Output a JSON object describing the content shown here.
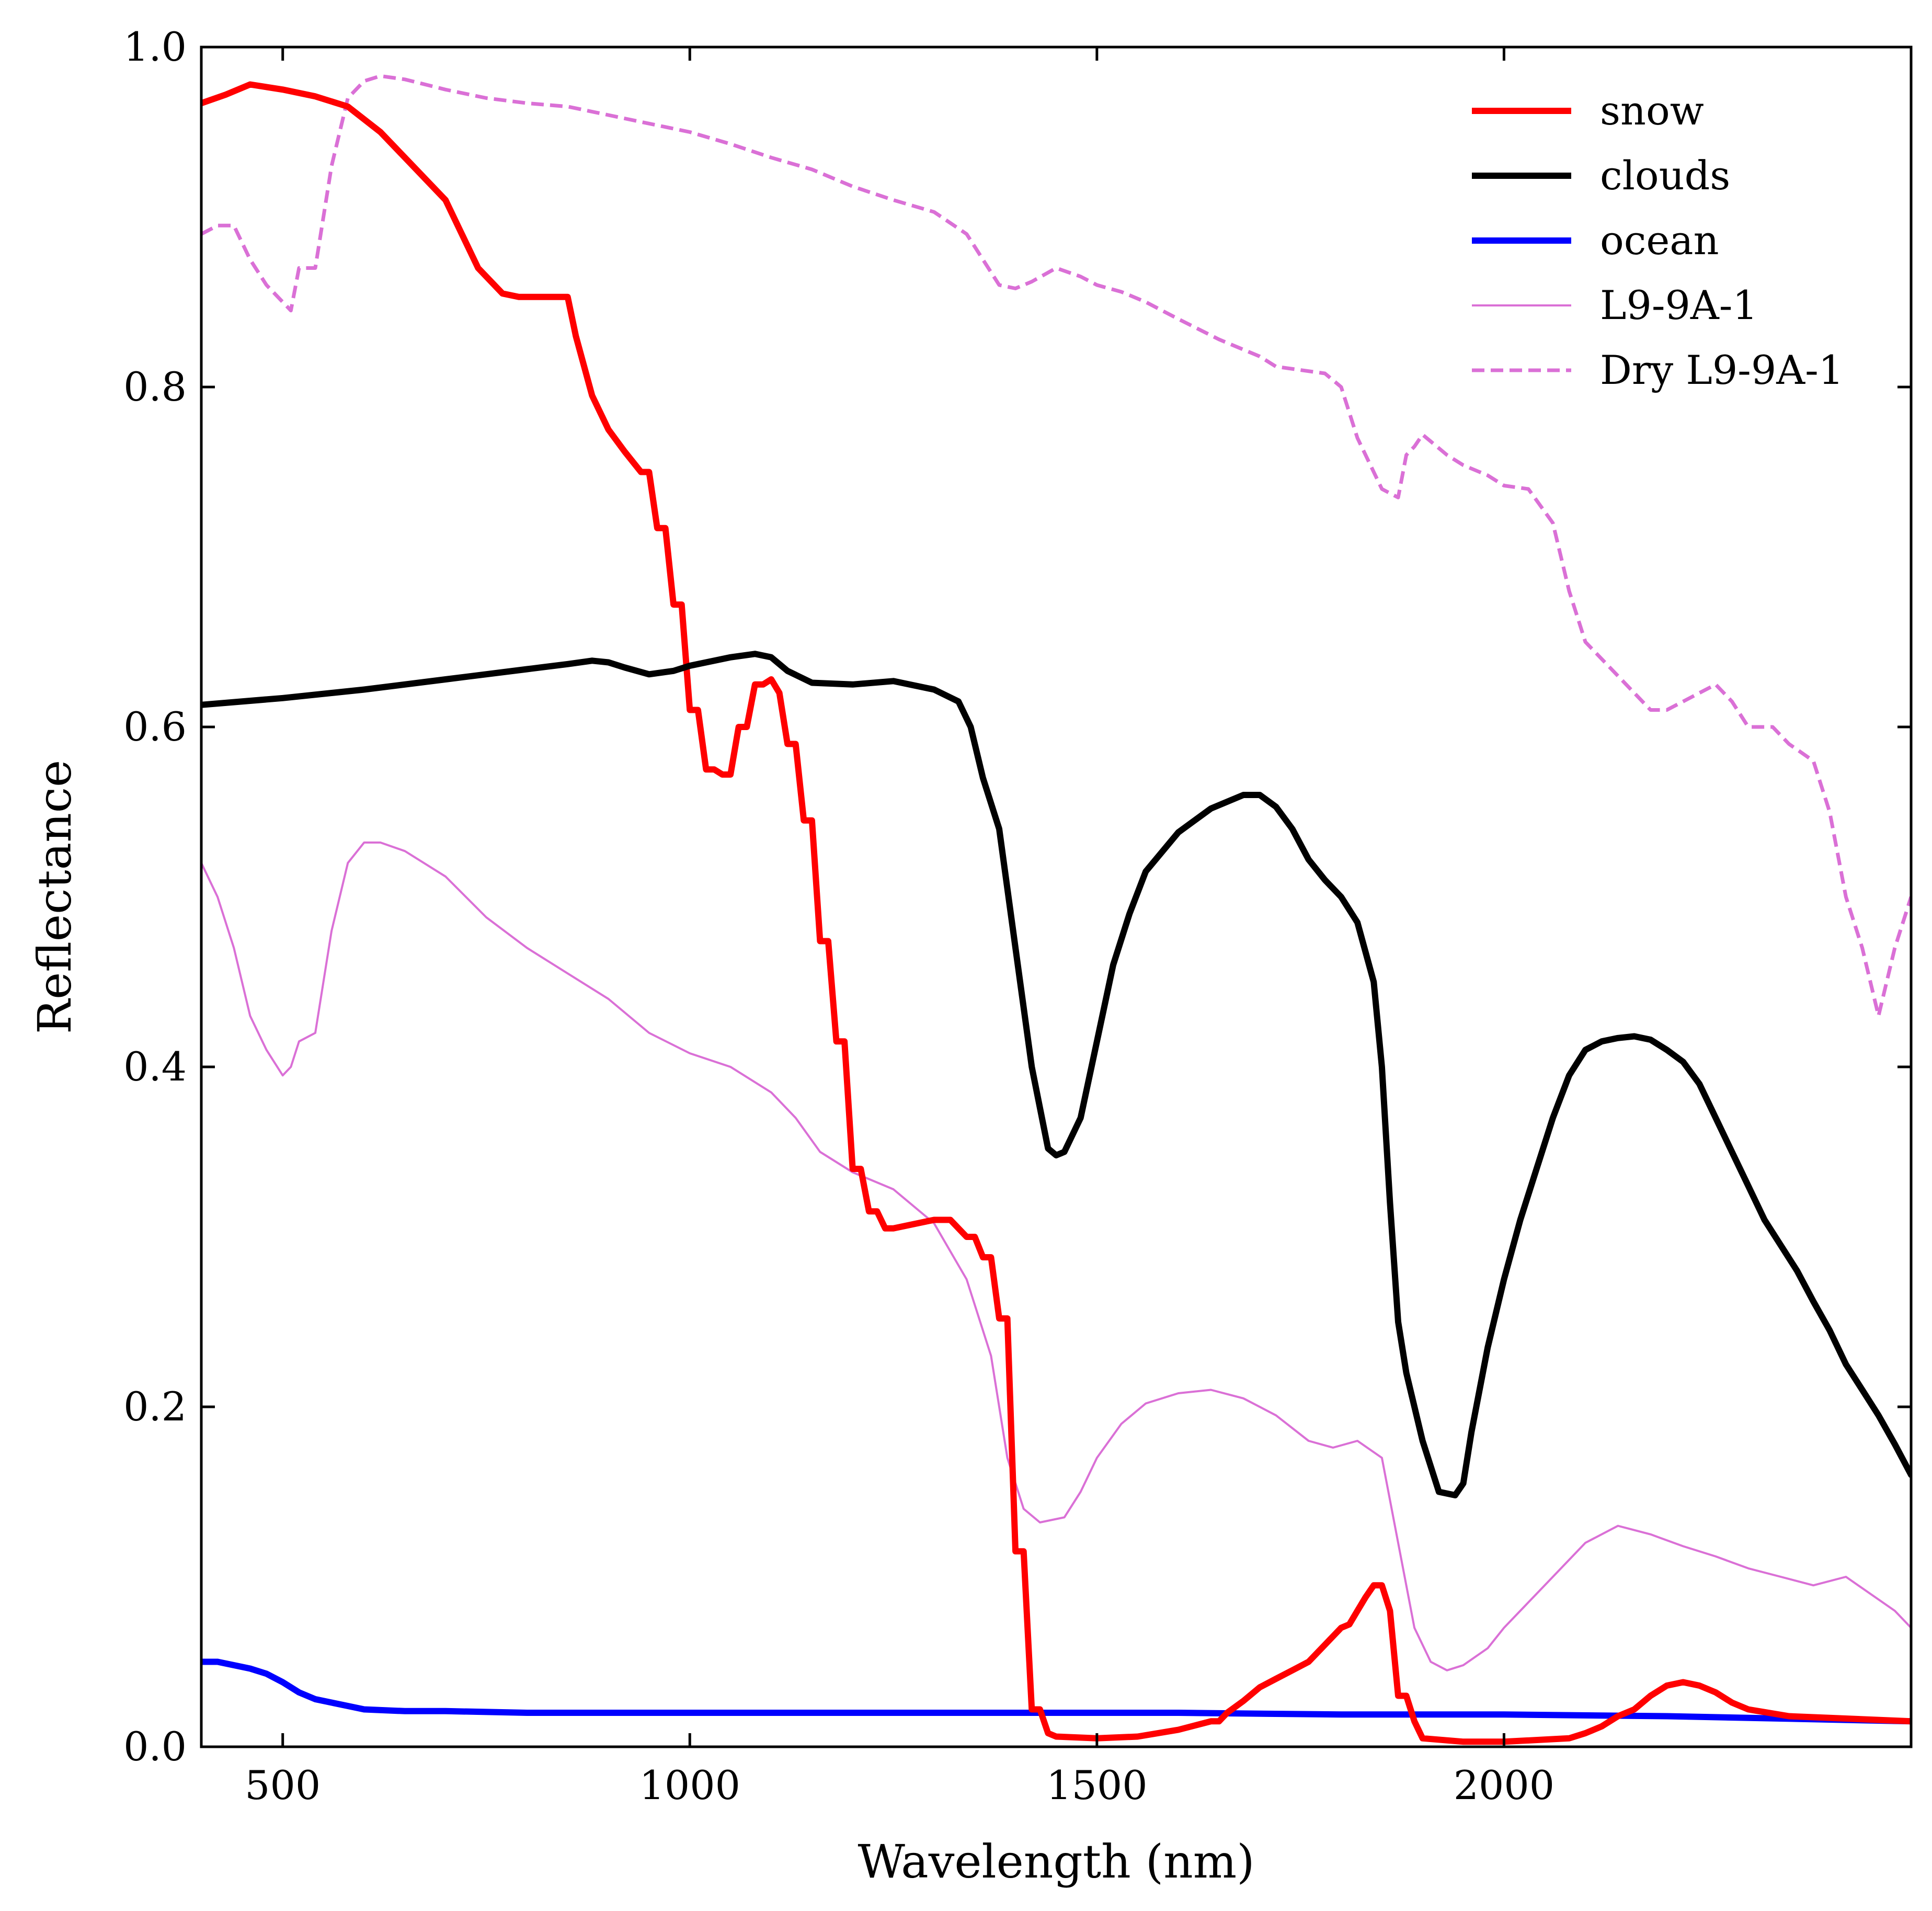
{
  "chart_data": {
    "type": "line",
    "title": "",
    "xlabel": "Wavelength (nm)",
    "ylabel": "Reflectance",
    "xlim": [
      400,
      2500
    ],
    "ylim": [
      0.0,
      1.0
    ],
    "xticks": [
      500,
      1000,
      1500,
      2000
    ],
    "xtick_labels": [
      "500",
      "1000",
      "1500",
      "2000"
    ],
    "yticks": [
      0.0,
      0.2,
      0.4,
      0.6,
      0.8,
      1.0
    ],
    "ytick_labels": [
      "0.0",
      "0.2",
      "0.4",
      "0.6",
      "0.8",
      "1.0"
    ],
    "grid": false,
    "legend_position": "top-right",
    "series": [
      {
        "name": "snow",
        "color": "#ff0000",
        "style": "solid",
        "weight": "thick",
        "x": [
          400,
          430,
          460,
          500,
          540,
          580,
          620,
          660,
          700,
          740,
          770,
          790,
          810,
          850,
          860,
          880,
          900,
          920,
          940,
          950,
          960,
          970,
          980,
          990,
          1000,
          1010,
          1020,
          1030,
          1040,
          1050,
          1060,
          1070,
          1080,
          1090,
          1100,
          1110,
          1120,
          1130,
          1140,
          1150,
          1160,
          1170,
          1180,
          1190,
          1200,
          1210,
          1220,
          1230,
          1240,
          1250,
          1300,
          1320,
          1340,
          1350,
          1360,
          1370,
          1380,
          1390,
          1400,
          1410,
          1420,
          1430,
          1440,
          1450,
          1500,
          1550,
          1600,
          1640,
          1650,
          1660,
          1680,
          1700,
          1720,
          1740,
          1760,
          1780,
          1800,
          1810,
          1820,
          1830,
          1840,
          1850,
          1860,
          1870,
          1880,
          1890,
          1900,
          1950,
          2000,
          2080,
          2100,
          2120,
          2140,
          2160,
          2180,
          2200,
          2220,
          2240,
          2260,
          2280,
          2300,
          2350,
          2400,
          2450,
          2500
        ],
        "y": [
          0.967,
          0.972,
          0.978,
          0.975,
          0.971,
          0.965,
          0.95,
          0.93,
          0.91,
          0.87,
          0.855,
          0.853,
          0.853,
          0.853,
          0.83,
          0.795,
          0.775,
          0.762,
          0.75,
          0.75,
          0.717,
          0.717,
          0.672,
          0.672,
          0.61,
          0.61,
          0.575,
          0.575,
          0.572,
          0.572,
          0.6,
          0.6,
          0.625,
          0.625,
          0.628,
          0.62,
          0.59,
          0.59,
          0.545,
          0.545,
          0.474,
          0.474,
          0.415,
          0.415,
          0.34,
          0.34,
          0.315,
          0.315,
          0.305,
          0.305,
          0.31,
          0.31,
          0.3,
          0.3,
          0.288,
          0.288,
          0.252,
          0.252,
          0.115,
          0.115,
          0.022,
          0.022,
          0.008,
          0.006,
          0.005,
          0.006,
          0.01,
          0.015,
          0.015,
          0.02,
          0.027,
          0.035,
          0.04,
          0.045,
          0.05,
          0.06,
          0.07,
          0.072,
          0.08,
          0.088,
          0.095,
          0.095,
          0.08,
          0.03,
          0.03,
          0.015,
          0.005,
          0.003,
          0.003,
          0.005,
          0.008,
          0.012,
          0.018,
          0.022,
          0.03,
          0.036,
          0.038,
          0.036,
          0.032,
          0.026,
          0.022,
          0.018,
          0.017,
          0.016,
          0.015
        ]
      },
      {
        "name": "clouds",
        "color": "#000000",
        "style": "solid",
        "weight": "thick",
        "x": [
          400,
          500,
          600,
          700,
          800,
          850,
          880,
          900,
          920,
          950,
          980,
          1000,
          1050,
          1080,
          1100,
          1120,
          1150,
          1200,
          1250,
          1300,
          1330,
          1345,
          1360,
          1380,
          1400,
          1420,
          1440,
          1450,
          1460,
          1480,
          1500,
          1520,
          1540,
          1560,
          1600,
          1640,
          1680,
          1700,
          1720,
          1740,
          1760,
          1780,
          1800,
          1820,
          1840,
          1850,
          1860,
          1870,
          1880,
          1900,
          1920,
          1940,
          1950,
          1960,
          1980,
          2000,
          2020,
          2040,
          2060,
          2080,
          2100,
          2120,
          2140,
          2160,
          2180,
          2200,
          2220,
          2240,
          2260,
          2280,
          2300,
          2320,
          2340,
          2360,
          2380,
          2400,
          2420,
          2440,
          2460,
          2480,
          2500
        ],
        "y": [
          0.613,
          0.617,
          0.622,
          0.628,
          0.634,
          0.637,
          0.639,
          0.638,
          0.635,
          0.631,
          0.633,
          0.636,
          0.641,
          0.643,
          0.641,
          0.633,
          0.626,
          0.625,
          0.627,
          0.622,
          0.615,
          0.6,
          0.57,
          0.54,
          0.47,
          0.4,
          0.352,
          0.348,
          0.35,
          0.37,
          0.415,
          0.46,
          0.49,
          0.515,
          0.538,
          0.552,
          0.56,
          0.56,
          0.553,
          0.54,
          0.522,
          0.51,
          0.5,
          0.485,
          0.45,
          0.4,
          0.32,
          0.25,
          0.22,
          0.18,
          0.15,
          0.148,
          0.155,
          0.185,
          0.235,
          0.275,
          0.31,
          0.34,
          0.37,
          0.395,
          0.41,
          0.415,
          0.417,
          0.418,
          0.416,
          0.41,
          0.403,
          0.39,
          0.37,
          0.35,
          0.33,
          0.31,
          0.295,
          0.28,
          0.262,
          0.245,
          0.225,
          0.21,
          0.195,
          0.178,
          0.16
        ]
      },
      {
        "name": "ocean",
        "color": "#0000ff",
        "style": "solid",
        "weight": "thick",
        "x": [
          400,
          420,
          440,
          460,
          480,
          500,
          520,
          540,
          560,
          580,
          600,
          650,
          700,
          800,
          1000,
          1200,
          1400,
          1600,
          1800,
          2000,
          2200,
          2400,
          2500
        ],
        "y": [
          0.05,
          0.05,
          0.048,
          0.046,
          0.043,
          0.038,
          0.032,
          0.028,
          0.026,
          0.024,
          0.022,
          0.021,
          0.021,
          0.02,
          0.02,
          0.02,
          0.02,
          0.02,
          0.019,
          0.019,
          0.018,
          0.016,
          0.015
        ]
      },
      {
        "name": "L9-9A-1",
        "color": "#da70d6",
        "style": "solid",
        "weight": "thin",
        "x": [
          400,
          420,
          440,
          460,
          480,
          500,
          510,
          520,
          540,
          560,
          580,
          600,
          620,
          650,
          700,
          750,
          800,
          850,
          900,
          950,
          1000,
          1050,
          1100,
          1130,
          1160,
          1200,
          1250,
          1300,
          1340,
          1370,
          1390,
          1410,
          1430,
          1460,
          1480,
          1500,
          1530,
          1560,
          1600,
          1640,
          1680,
          1720,
          1760,
          1790,
          1820,
          1850,
          1870,
          1890,
          1910,
          1930,
          1950,
          1980,
          2000,
          2030,
          2060,
          2100,
          2140,
          2180,
          2220,
          2260,
          2300,
          2340,
          2380,
          2420,
          2450,
          2480,
          2500
        ],
        "y": [
          0.52,
          0.5,
          0.47,
          0.43,
          0.41,
          0.395,
          0.4,
          0.415,
          0.42,
          0.48,
          0.52,
          0.532,
          0.532,
          0.527,
          0.512,
          0.488,
          0.47,
          0.455,
          0.44,
          0.42,
          0.408,
          0.4,
          0.385,
          0.37,
          0.35,
          0.338,
          0.328,
          0.308,
          0.275,
          0.23,
          0.17,
          0.14,
          0.132,
          0.135,
          0.15,
          0.17,
          0.19,
          0.202,
          0.208,
          0.21,
          0.205,
          0.195,
          0.18,
          0.176,
          0.18,
          0.17,
          0.12,
          0.07,
          0.05,
          0.045,
          0.048,
          0.058,
          0.07,
          0.085,
          0.1,
          0.12,
          0.13,
          0.125,
          0.118,
          0.112,
          0.105,
          0.1,
          0.095,
          0.1,
          0.09,
          0.08,
          0.07
        ]
      },
      {
        "name": "Dry L9-9A-1",
        "color": "#da70d6",
        "style": "dashed",
        "weight": "medium",
        "x": [
          400,
          420,
          440,
          460,
          480,
          500,
          510,
          520,
          540,
          560,
          580,
          600,
          620,
          650,
          700,
          750,
          800,
          850,
          900,
          950,
          1000,
          1050,
          1100,
          1150,
          1200,
          1250,
          1300,
          1340,
          1380,
          1400,
          1420,
          1450,
          1480,
          1500,
          1530,
          1560,
          1600,
          1650,
          1680,
          1700,
          1720,
          1750,
          1780,
          1800,
          1820,
          1850,
          1870,
          1880,
          1890,
          1900,
          1910,
          1930,
          1950,
          1980,
          2000,
          2030,
          2060,
          2080,
          2100,
          2140,
          2160,
          2180,
          2200,
          2220,
          2240,
          2260,
          2280,
          2300,
          2330,
          2350,
          2380,
          2400,
          2420,
          2440,
          2460,
          2480,
          2500
        ],
        "y": [
          0.89,
          0.895,
          0.895,
          0.875,
          0.86,
          0.85,
          0.845,
          0.87,
          0.87,
          0.93,
          0.97,
          0.98,
          0.983,
          0.981,
          0.975,
          0.97,
          0.967,
          0.965,
          0.96,
          0.955,
          0.95,
          0.943,
          0.935,
          0.928,
          0.918,
          0.91,
          0.903,
          0.89,
          0.86,
          0.858,
          0.862,
          0.87,
          0.865,
          0.86,
          0.856,
          0.85,
          0.84,
          0.828,
          0.822,
          0.818,
          0.812,
          0.81,
          0.808,
          0.8,
          0.77,
          0.74,
          0.735,
          0.76,
          0.765,
          0.772,
          0.768,
          0.76,
          0.754,
          0.748,
          0.742,
          0.74,
          0.72,
          0.68,
          0.65,
          0.63,
          0.62,
          0.61,
          0.61,
          0.615,
          0.62,
          0.625,
          0.615,
          0.6,
          0.6,
          0.59,
          0.58,
          0.55,
          0.5,
          0.47,
          0.43,
          0.47,
          0.5
        ]
      }
    ]
  }
}
